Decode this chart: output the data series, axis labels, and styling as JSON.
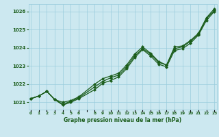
{
  "title": "Graphe pression niveau de la mer (hPa)",
  "bg_color": "#cce8f0",
  "grid_color": "#99ccdd",
  "line_color": "#1a5c1a",
  "marker_color": "#1a5c1a",
  "ylim": [
    1020.6,
    1026.4
  ],
  "yticks": [
    1021,
    1022,
    1023,
    1024,
    1025,
    1026
  ],
  "xlim": [
    -0.3,
    23.3
  ],
  "line1_x": [
    0,
    1,
    2,
    3,
    4,
    5,
    6,
    8,
    9,
    10,
    11,
    12,
    13,
    14,
    15,
    16,
    17,
    18,
    19,
    20,
    21,
    22,
    23
  ],
  "line1_y": [
    1021.2,
    1021.35,
    1021.6,
    1021.15,
    1020.9,
    1021.05,
    1021.25,
    1021.85,
    1022.15,
    1022.35,
    1022.5,
    1022.95,
    1023.55,
    1023.95,
    1023.65,
    1023.2,
    1023.05,
    1023.95,
    1024.05,
    1024.35,
    1024.75,
    1025.6,
    1026.05
  ],
  "line2_x": [
    0,
    1,
    2,
    3,
    4,
    5,
    6,
    8,
    9,
    10,
    11,
    12,
    13,
    14,
    15,
    16,
    17,
    18,
    19,
    20,
    21,
    22,
    23
  ],
  "line2_y": [
    1021.2,
    1021.35,
    1021.6,
    1021.15,
    1021.0,
    1021.1,
    1021.3,
    1022.0,
    1022.3,
    1022.45,
    1022.6,
    1023.05,
    1023.65,
    1024.05,
    1023.7,
    1023.25,
    1023.05,
    1024.05,
    1024.1,
    1024.4,
    1024.8,
    1025.65,
    1026.15
  ],
  "line3_x": [
    0,
    1,
    2,
    3,
    4,
    5,
    6,
    8,
    9,
    10,
    11,
    12,
    13,
    14,
    15,
    16,
    17,
    18,
    19,
    20,
    21,
    22,
    23
  ],
  "line3_y": [
    1021.2,
    1021.35,
    1021.6,
    1021.15,
    1020.85,
    1021.0,
    1021.2,
    1021.7,
    1022.05,
    1022.2,
    1022.4,
    1022.85,
    1023.45,
    1023.9,
    1023.55,
    1023.1,
    1022.95,
    1023.85,
    1023.95,
    1024.25,
    1024.7,
    1025.5,
    1026.0
  ]
}
